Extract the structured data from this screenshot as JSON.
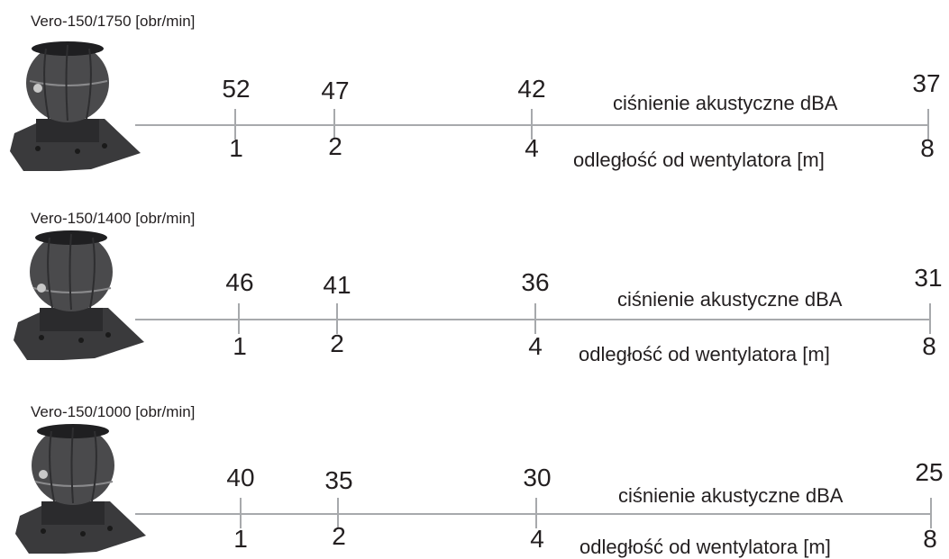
{
  "pressure_label": "ciśnienie akustyczne dBA",
  "distance_label": "odległość od wentylatora [m]",
  "distances": [
    "1",
    "2",
    "4",
    "8"
  ],
  "rows": [
    {
      "title": "Vero-150/1750 [obr/min]",
      "values": [
        "52",
        "47",
        "42",
        "37"
      ]
    },
    {
      "title": "Vero-150/1400 [obr/min]",
      "values": [
        "46",
        "41",
        "36",
        "31"
      ]
    },
    {
      "title": "Vero-150/1000 [obr/min]",
      "values": [
        "40",
        "35",
        "30",
        "25"
      ]
    }
  ],
  "colors": {
    "line": "#a7a9ac",
    "text": "#231f20",
    "fan_body": "#3a3a3c"
  },
  "icons": {
    "fan": "roof-fan-icon"
  }
}
